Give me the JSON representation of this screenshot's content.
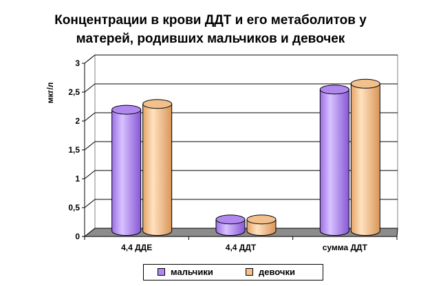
{
  "title_lines": [
    "Концентрации в крови ДДТ и его метаболитов у",
    "матерей, родивших мальчиков и девочек"
  ],
  "chart_data": {
    "type": "bar",
    "title": "Концентрации в крови ДДТ и его метаболитов у матерей, родивших мальчиков и девочек",
    "ylabel": "мкг/л",
    "xlabel": "",
    "categories": [
      "4,4 ДДЕ",
      "4,4 ДДТ",
      "сумма ДДТ"
    ],
    "series": [
      {
        "name": "мальчики",
        "values": [
          2.1,
          0.2,
          2.45
        ],
        "color": "#b088f0"
      },
      {
        "name": "девочки",
        "values": [
          2.2,
          0.2,
          2.55
        ],
        "color": "#f2c08c"
      }
    ],
    "yticks": [
      "0",
      "0,5",
      "1",
      "1,5",
      "2",
      "2,5",
      "3"
    ],
    "ylim": [
      0,
      3
    ],
    "grid": true,
    "legend": "bottom",
    "style": "3d-cylinder"
  }
}
